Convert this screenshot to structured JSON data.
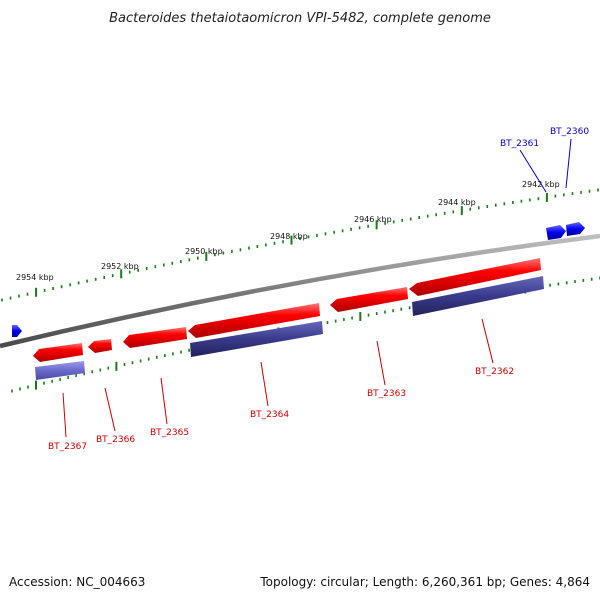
{
  "title": "Bacteroides thetaiotaomicron VPI-5482, complete genome",
  "footer": {
    "accession": "Accession: NC_004663",
    "summary": "Topology: circular; Length: 6,260,361 bp; Genes: 4,864"
  },
  "ruler_labels": [
    "2954 kbp",
    "2952 kbp",
    "2950 kbp",
    "2948 kbp",
    "2946 kbp",
    "2944 kbp",
    "2942 kbp"
  ],
  "genes": [
    {
      "name": "BT_2367",
      "color": "#cc0000"
    },
    {
      "name": "BT_2366",
      "color": "#cc0000"
    },
    {
      "name": "BT_2365",
      "color": "#cc0000"
    },
    {
      "name": "BT_2364",
      "color": "#cc0000"
    },
    {
      "name": "BT_2363",
      "color": "#cc0000"
    },
    {
      "name": "BT_2362",
      "color": "#cc0000"
    },
    {
      "name": "BT_2361",
      "color": "#0000cc"
    },
    {
      "name": "BT_2360",
      "color": "#0000cc"
    }
  ],
  "colors": {
    "forward_gene": "#0000ee",
    "reverse_gene": "#ee0000",
    "cds": "#3a3a8c",
    "backbone": "#8a8a8a",
    "tick": "#1a7a1a"
  }
}
